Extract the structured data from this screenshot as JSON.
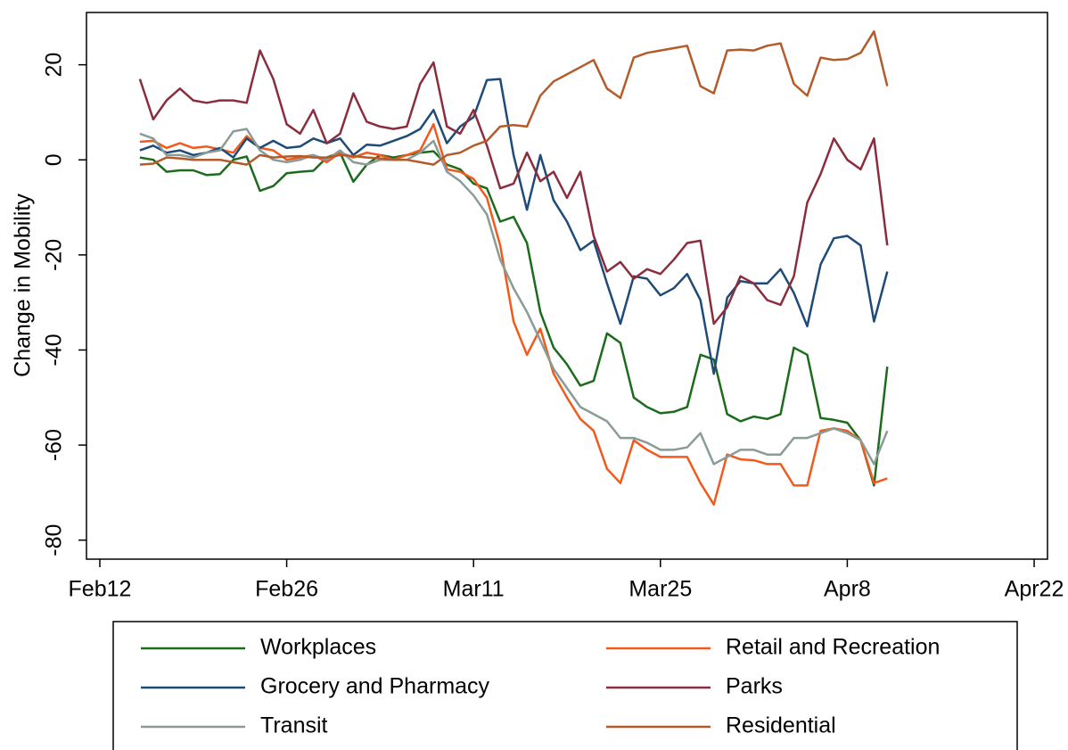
{
  "chart_data": {
    "type": "line",
    "y_label": "Change in Mobility",
    "x": [
      "Feb15",
      "Feb16",
      "Feb17",
      "Feb18",
      "Feb19",
      "Feb20",
      "Feb21",
      "Feb22",
      "Feb23",
      "Feb24",
      "Feb25",
      "Feb26",
      "Feb27",
      "Feb28",
      "Feb29",
      "Mar1",
      "Mar2",
      "Mar3",
      "Mar4",
      "Mar5",
      "Mar6",
      "Mar7",
      "Mar8",
      "Mar9",
      "Mar10",
      "Mar11",
      "Mar12",
      "Mar13",
      "Mar14",
      "Mar15",
      "Mar16",
      "Mar17",
      "Mar18",
      "Mar19",
      "Mar20",
      "Mar21",
      "Mar22",
      "Mar23",
      "Mar24",
      "Mar25",
      "Mar26",
      "Mar27",
      "Mar28",
      "Mar29",
      "Mar30",
      "Mar31",
      "Apr1",
      "Apr2",
      "Apr3",
      "Apr4",
      "Apr5",
      "Apr6",
      "Apr7",
      "Apr8",
      "Apr9",
      "Apr10",
      "Apr11"
    ],
    "xlim": [
      "Feb11",
      "Apr23"
    ],
    "xticks": [
      "Feb12",
      "Feb26",
      "Mar11",
      "Mar25",
      "Apr8",
      "Apr22"
    ],
    "ylim": [
      -84,
      31
    ],
    "yticks": [
      -80,
      -60,
      -40,
      -20,
      0,
      20
    ],
    "series": [
      {
        "name": "Workplaces",
        "color": "#1d6b1d",
        "values": [
          0.5,
          0,
          -2.5,
          -2.2,
          -2.2,
          -3.2,
          -3,
          0,
          0.7,
          -6.5,
          -5.5,
          -2.8,
          -2.5,
          -2.3,
          0.5,
          1.5,
          -4.6,
          -1,
          1,
          0.5,
          1,
          1.5,
          1.8,
          -1,
          -2,
          -5,
          -6,
          -13,
          -12,
          -17.5,
          -32,
          -39.5,
          -43,
          -47.5,
          -46.5,
          -36.5,
          -38.5,
          -50,
          -52,
          -53.3,
          -53,
          -52,
          -41,
          -42,
          -53.5,
          -55,
          -54,
          -54.5,
          -53.5,
          -39.5,
          -41,
          -54.3,
          -54.7,
          -55.3,
          -59,
          -68.5,
          -43.5
        ]
      },
      {
        "name": "Retail and Recreation",
        "color": "#f25a1d",
        "values": [
          3.8,
          4,
          2.5,
          3.5,
          2.5,
          2.8,
          2.2,
          1.5,
          5,
          2.5,
          2,
          0,
          0.5,
          1,
          -0.5,
          1.5,
          0.5,
          1.5,
          1,
          0,
          1,
          2,
          7.5,
          -2,
          -2.5,
          -4,
          -8,
          -18,
          -34,
          -41,
          -35.5,
          -45,
          -50,
          -54.5,
          -57,
          -65,
          -68,
          -59,
          -61,
          -62.5,
          -62.5,
          -62.5,
          -68,
          -72.5,
          -62,
          -63,
          -63.2,
          -64,
          -64,
          -68.5,
          -68.5,
          -57,
          -56.5,
          -57,
          -59,
          -68,
          -67
        ]
      },
      {
        "name": "Grocery and Pharmacy",
        "color": "#1f4b78",
        "values": [
          2,
          3,
          1.5,
          2,
          1,
          1.5,
          2.5,
          0.5,
          4.5,
          2.5,
          4,
          2.5,
          2.8,
          4.5,
          3.5,
          4.5,
          1,
          3.2,
          3,
          4,
          5,
          6.5,
          10.5,
          3.5,
          7,
          9,
          16.8,
          17,
          1,
          -10.5,
          1,
          -8.5,
          -13,
          -19,
          -17,
          -26,
          -34.5,
          -24.5,
          -25,
          -28.5,
          -27,
          -24,
          -29.5,
          -45,
          -29,
          -25.5,
          -26,
          -26,
          -23,
          -28,
          -35,
          -22,
          -16.5,
          -16,
          -18,
          -34,
          -23.5
        ]
      },
      {
        "name": "Parks",
        "color": "#8c2d3e",
        "values": [
          17,
          8.5,
          12.5,
          15,
          12.5,
          12,
          12.5,
          12.5,
          12,
          23,
          17,
          7.5,
          5.5,
          10.5,
          3.5,
          5.5,
          14,
          8,
          7,
          6.5,
          7,
          16,
          20.5,
          7,
          5.5,
          10.5,
          3,
          -6,
          -5,
          1.5,
          -4.5,
          -2.5,
          -8,
          -2.5,
          -16,
          -23.5,
          -21.5,
          -25,
          -23,
          -24,
          -21,
          -17.5,
          -17,
          -34.5,
          -31,
          -24.5,
          -26,
          -29.5,
          -30.5,
          -24.5,
          -9,
          -3,
          4.5,
          0,
          -2,
          4.5,
          -18
        ]
      },
      {
        "name": "Transit",
        "color": "#8a9b98",
        "values": [
          5.5,
          4.5,
          1,
          1,
          0.5,
          1.5,
          2,
          6,
          6.5,
          2,
          0,
          -0.5,
          0,
          1,
          0,
          2,
          -0.5,
          -1,
          0,
          0,
          0,
          1.5,
          4,
          -2.5,
          -4.5,
          -7.5,
          -11.5,
          -21,
          -27,
          -32,
          -38,
          -44,
          -48,
          -52,
          -53.5,
          -55,
          -58.5,
          -58.5,
          -59.5,
          -61,
          -61,
          -60.5,
          -57.5,
          -64,
          -62.5,
          -61,
          -61,
          -62,
          -62,
          -58.5,
          -58.5,
          -57.5,
          -56.5,
          -57.5,
          -59,
          -64,
          -57
        ]
      },
      {
        "name": "Residential",
        "color": "#b35b2a",
        "values": [
          -1,
          -0.8,
          0.5,
          0.3,
          0,
          0,
          0,
          -0.5,
          -1,
          1,
          0.5,
          0.7,
          0.8,
          0.5,
          0.5,
          1,
          0.8,
          0.5,
          0.3,
          0,
          0,
          -0.5,
          -1,
          1,
          1.5,
          3,
          4,
          7,
          7.3,
          7,
          13.5,
          16.5,
          18,
          19.5,
          21,
          15,
          13,
          21.5,
          22.5,
          23,
          23.5,
          24,
          15.5,
          14,
          23,
          23.2,
          23,
          24,
          24.5,
          16,
          13.5,
          21.5,
          21,
          21.2,
          22.5,
          27,
          15.5
        ]
      }
    ]
  }
}
